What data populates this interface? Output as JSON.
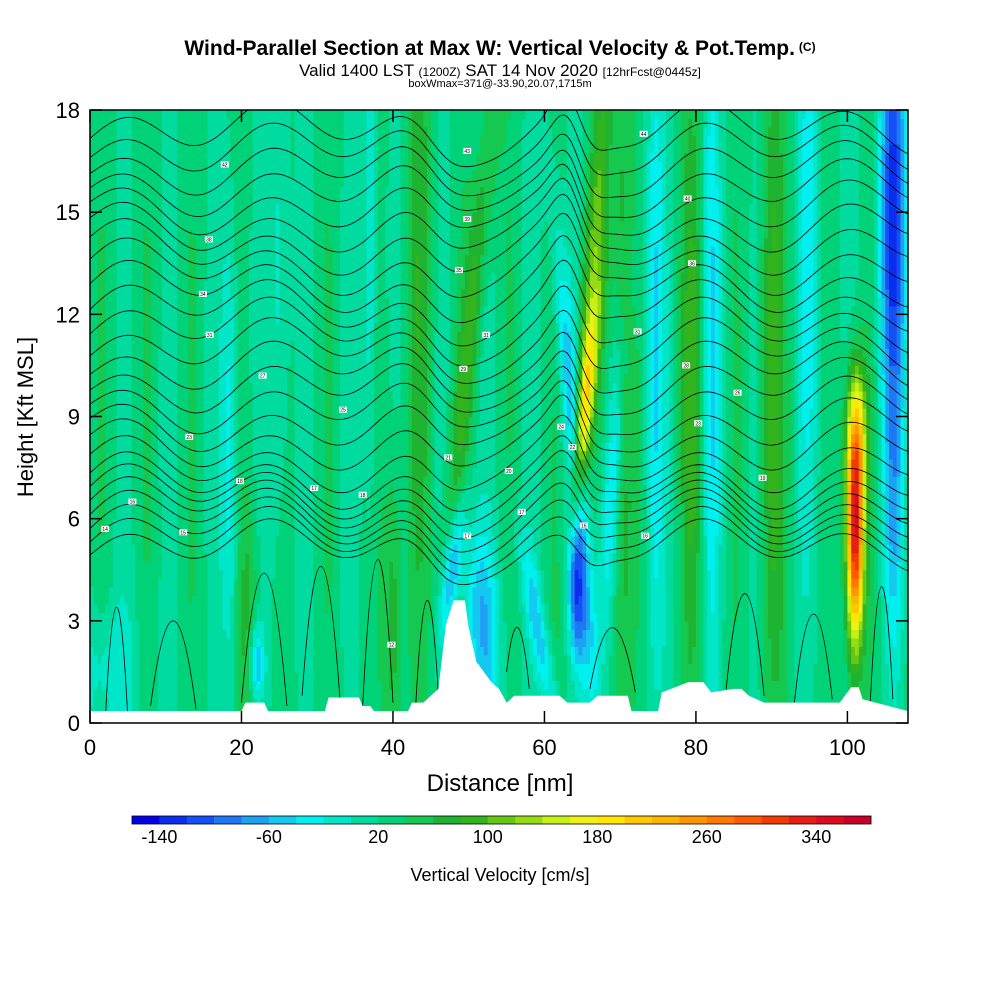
{
  "chart_data": {
    "type": "heatmap",
    "title": "Wind-Parallel Section at Max W: Vertical Velocity & Pot.Temp.",
    "title_suffix": "(C)",
    "subtitle": {
      "valid": "Valid 1400 LST",
      "utc": "(1200Z)",
      "date": "SAT 14 Nov 2020",
      "forecast": "[12hrFcst@0445z]"
    },
    "subtitle2": "boxWmax=371@-33.90,20.07,1715m",
    "xlabel": "Distance [nm]",
    "ylabel": "Height [Kft MSL]",
    "xlim": [
      0,
      108
    ],
    "ylim": [
      0,
      18
    ],
    "xticks": [
      0,
      20,
      40,
      60,
      80,
      100
    ],
    "yticks": [
      0,
      3,
      6,
      9,
      12,
      15,
      18
    ],
    "colorbar": {
      "label": "Vertical Velocity [cm/s]",
      "ticks": [
        -140,
        -60,
        20,
        100,
        180,
        260,
        340
      ],
      "min": -160,
      "max": 380,
      "step": 20,
      "colors": [
        "#0000e6",
        "#0a2df0",
        "#1450f5",
        "#1e78f5",
        "#1ea0f5",
        "#14c8f0",
        "#00f0f0",
        "#00e6c8",
        "#00dca0",
        "#00d278",
        "#14c850",
        "#1eb432",
        "#32b41e",
        "#64c814",
        "#96dc14",
        "#c8f014",
        "#f0f014",
        "#ffe600",
        "#ffc800",
        "#ffb400",
        "#ff9600",
        "#ff7800",
        "#ff5a00",
        "#f03c00",
        "#e61e14",
        "#dc0a1e",
        "#c80028"
      ]
    },
    "terrain": [
      [
        0,
        0.35
      ],
      [
        20,
        0.35
      ],
      [
        20.5,
        0.6
      ],
      [
        23,
        0.6
      ],
      [
        23.5,
        0.35
      ],
      [
        31,
        0.35
      ],
      [
        31.5,
        0.75
      ],
      [
        35.5,
        0.75
      ],
      [
        36,
        0.5
      ],
      [
        37,
        0.5
      ],
      [
        37.5,
        0.35
      ],
      [
        42,
        0.35
      ],
      [
        42.5,
        0.6
      ],
      [
        44,
        0.6
      ],
      [
        46,
        1
      ],
      [
        47,
        2.9
      ],
      [
        48,
        3.6
      ],
      [
        49.5,
        3.6
      ],
      [
        50,
        2.8
      ],
      [
        51,
        1.8
      ],
      [
        53,
        1.2
      ],
      [
        54,
        1
      ],
      [
        55,
        0.6
      ],
      [
        56,
        0.8
      ],
      [
        62,
        0.8
      ],
      [
        63,
        0.6
      ],
      [
        66,
        0.6
      ],
      [
        67,
        0.8
      ],
      [
        71,
        0.8
      ],
      [
        71.5,
        0.35
      ],
      [
        75,
        0.35
      ],
      [
        75.5,
        0.9
      ],
      [
        79,
        1.2
      ],
      [
        81,
        1.2
      ],
      [
        82,
        0.9
      ],
      [
        85,
        1.0
      ],
      [
        86,
        1.0
      ],
      [
        87,
        0.8
      ],
      [
        89,
        0.6
      ],
      [
        96,
        0.6
      ],
      [
        99,
        0.6
      ],
      [
        100,
        0.9
      ],
      [
        100.5,
        1.05
      ],
      [
        101.5,
        1.05
      ],
      [
        102,
        0.7
      ],
      [
        108,
        0.35
      ]
    ],
    "contour_labels": [
      {
        "x": 2,
        "y": 5.7,
        "text": "14"
      },
      {
        "x": 5.6,
        "y": 6.5,
        "text": "16"
      },
      {
        "x": 12.3,
        "y": 5.6,
        "text": "15"
      },
      {
        "x": 13.1,
        "y": 8.4,
        "text": "23"
      },
      {
        "x": 14.9,
        "y": 12.6,
        "text": "34"
      },
      {
        "x": 15.7,
        "y": 14.2,
        "text": "38"
      },
      {
        "x": 17.8,
        "y": 16.4,
        "text": "42"
      },
      {
        "x": 15.8,
        "y": 11.4,
        "text": "31"
      },
      {
        "x": 19.8,
        "y": 7.1,
        "text": "18"
      },
      {
        "x": 22.8,
        "y": 10.2,
        "text": "27"
      },
      {
        "x": 29.6,
        "y": 6.9,
        "text": "17"
      },
      {
        "x": 33.4,
        "y": 9.2,
        "text": "25"
      },
      {
        "x": 36,
        "y": 6.7,
        "text": "18"
      },
      {
        "x": 39.8,
        "y": 2.3,
        "text": "12"
      },
      {
        "x": 47.3,
        "y": 7.8,
        "text": "21"
      },
      {
        "x": 48.7,
        "y": 13.3,
        "text": "35"
      },
      {
        "x": 49.3,
        "y": 10.4,
        "text": "29"
      },
      {
        "x": 49.8,
        "y": 14.8,
        "text": "39"
      },
      {
        "x": 49.8,
        "y": 16.8,
        "text": "43"
      },
      {
        "x": 49.8,
        "y": 5.5,
        "text": "17"
      },
      {
        "x": 52.3,
        "y": 11.4,
        "text": "31"
      },
      {
        "x": 55.3,
        "y": 7.4,
        "text": "20"
      },
      {
        "x": 57,
        "y": 6.2,
        "text": "17"
      },
      {
        "x": 62.2,
        "y": 8.7,
        "text": "24"
      },
      {
        "x": 63.7,
        "y": 8.1,
        "text": "22"
      },
      {
        "x": 65.2,
        "y": 5.8,
        "text": "16"
      },
      {
        "x": 72.3,
        "y": 11.5,
        "text": "31"
      },
      {
        "x": 73.1,
        "y": 17.3,
        "text": "44"
      },
      {
        "x": 73.3,
        "y": 5.5,
        "text": "16"
      },
      {
        "x": 78.7,
        "y": 10.5,
        "text": "28"
      },
      {
        "x": 78.9,
        "y": 15.4,
        "text": "40"
      },
      {
        "x": 79.5,
        "y": 13.5,
        "text": "36"
      },
      {
        "x": 80.3,
        "y": 8.8,
        "text": "23"
      },
      {
        "x": 85.5,
        "y": 9.7,
        "text": "26"
      },
      {
        "x": 88.8,
        "y": 7.2,
        "text": "19"
      }
    ]
  }
}
